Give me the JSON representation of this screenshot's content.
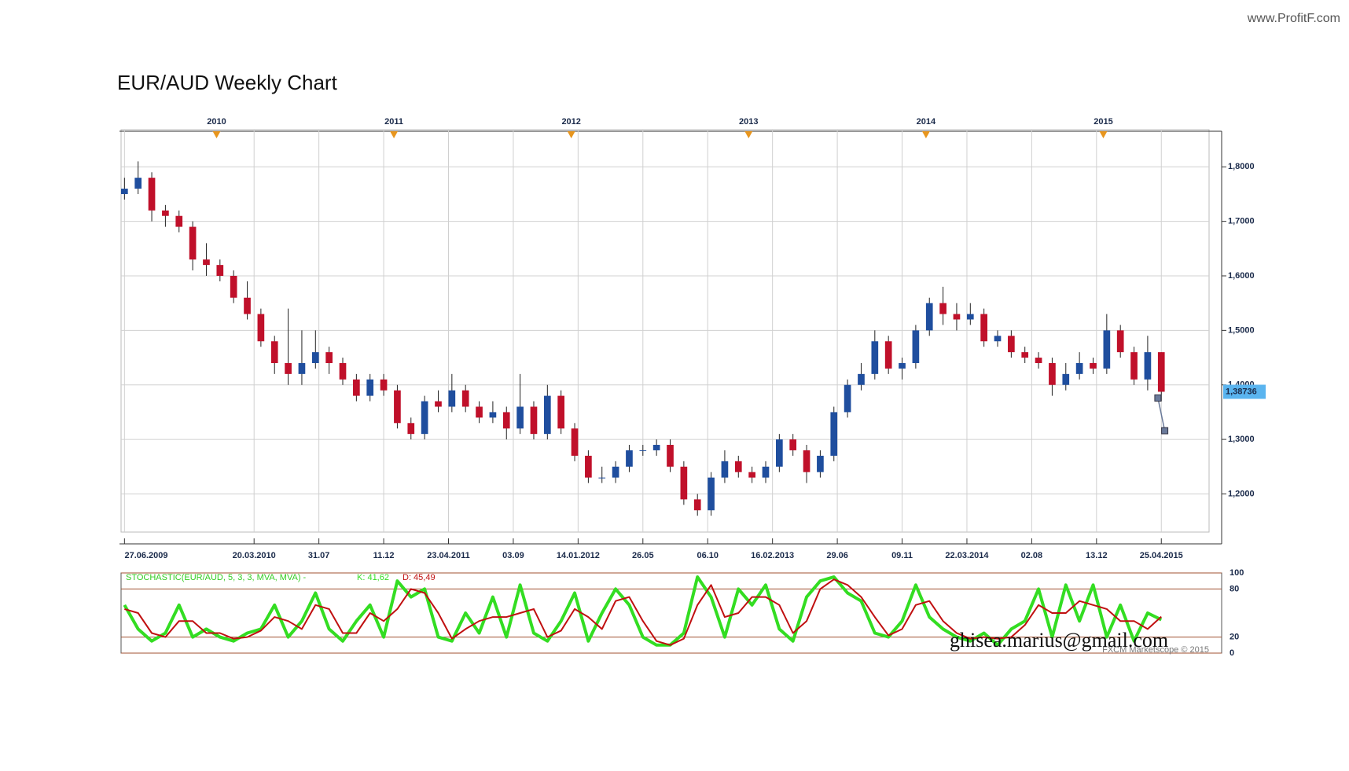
{
  "site": "www.ProfitF.com",
  "email": "ghisea.marius@gmail.com",
  "credit": "FXCM Marketscope © 2015",
  "chart_data": [
    {
      "type": "candlestick",
      "title": "EUR/AUD Weekly Chart",
      "x": [
        0,
        4,
        8,
        12,
        16,
        20,
        24,
        28,
        32,
        36,
        40,
        44,
        48,
        52,
        56,
        60,
        64,
        68,
        72,
        76,
        80,
        84,
        88,
        92,
        96,
        100,
        104,
        108,
        112,
        116,
        120,
        124,
        128,
        132,
        136,
        140,
        144,
        148,
        152,
        156,
        160,
        164,
        168,
        172,
        176,
        180,
        184,
        188,
        192,
        196,
        200,
        204,
        208,
        212,
        216,
        220,
        224,
        228,
        232,
        236,
        240,
        244,
        248,
        252,
        256,
        260,
        264,
        268,
        272,
        276,
        280,
        284,
        288,
        292,
        296,
        300,
        304
      ],
      "open": [
        1.75,
        1.76,
        1.78,
        1.72,
        1.71,
        1.69,
        1.63,
        1.62,
        1.6,
        1.56,
        1.53,
        1.48,
        1.44,
        1.42,
        1.44,
        1.46,
        1.44,
        1.41,
        1.38,
        1.41,
        1.39,
        1.33,
        1.31,
        1.37,
        1.36,
        1.39,
        1.36,
        1.34,
        1.35,
        1.32,
        1.36,
        1.31,
        1.38,
        1.32,
        1.27,
        1.23,
        1.23,
        1.25,
        1.28,
        1.28,
        1.29,
        1.25,
        1.19,
        1.17,
        1.23,
        1.26,
        1.24,
        1.23,
        1.25,
        1.3,
        1.28,
        1.24,
        1.27,
        1.35,
        1.4,
        1.42,
        1.48,
        1.43,
        1.44,
        1.5,
        1.55,
        1.53,
        1.52,
        1.53,
        1.48,
        1.49,
        1.46,
        1.45,
        1.44,
        1.4,
        1.42,
        1.44,
        1.43,
        1.5,
        1.46,
        1.41,
        1.46
      ],
      "high": [
        1.78,
        1.81,
        1.79,
        1.73,
        1.72,
        1.7,
        1.66,
        1.63,
        1.61,
        1.59,
        1.54,
        1.49,
        1.54,
        1.5,
        1.5,
        1.47,
        1.45,
        1.42,
        1.42,
        1.42,
        1.4,
        1.34,
        1.38,
        1.39,
        1.42,
        1.4,
        1.37,
        1.37,
        1.36,
        1.42,
        1.37,
        1.4,
        1.39,
        1.33,
        1.28,
        1.25,
        1.26,
        1.29,
        1.29,
        1.3,
        1.3,
        1.26,
        1.2,
        1.24,
        1.28,
        1.27,
        1.25,
        1.26,
        1.31,
        1.31,
        1.29,
        1.28,
        1.36,
        1.41,
        1.44,
        1.5,
        1.49,
        1.45,
        1.51,
        1.56,
        1.58,
        1.55,
        1.55,
        1.54,
        1.5,
        1.5,
        1.47,
        1.46,
        1.45,
        1.44,
        1.46,
        1.45,
        1.53,
        1.51,
        1.47,
        1.49,
        1.46
      ],
      "low": [
        1.74,
        1.75,
        1.7,
        1.69,
        1.68,
        1.61,
        1.6,
        1.59,
        1.55,
        1.52,
        1.47,
        1.42,
        1.4,
        1.4,
        1.43,
        1.42,
        1.4,
        1.37,
        1.37,
        1.38,
        1.32,
        1.3,
        1.3,
        1.35,
        1.35,
        1.35,
        1.33,
        1.33,
        1.3,
        1.31,
        1.3,
        1.3,
        1.31,
        1.26,
        1.22,
        1.22,
        1.22,
        1.24,
        1.27,
        1.27,
        1.24,
        1.18,
        1.16,
        1.16,
        1.22,
        1.23,
        1.22,
        1.22,
        1.24,
        1.27,
        1.22,
        1.23,
        1.26,
        1.34,
        1.39,
        1.41,
        1.42,
        1.41,
        1.43,
        1.49,
        1.51,
        1.5,
        1.51,
        1.47,
        1.47,
        1.45,
        1.44,
        1.43,
        1.38,
        1.39,
        1.41,
        1.42,
        1.42,
        1.45,
        1.4,
        1.39,
        1.37
      ],
      "close": [
        1.76,
        1.78,
        1.72,
        1.71,
        1.69,
        1.63,
        1.62,
        1.6,
        1.56,
        1.53,
        1.48,
        1.44,
        1.42,
        1.44,
        1.46,
        1.44,
        1.41,
        1.38,
        1.41,
        1.39,
        1.33,
        1.31,
        1.37,
        1.36,
        1.39,
        1.36,
        1.34,
        1.35,
        1.32,
        1.36,
        1.31,
        1.38,
        1.32,
        1.27,
        1.23,
        1.23,
        1.25,
        1.28,
        1.28,
        1.29,
        1.25,
        1.19,
        1.17,
        1.23,
        1.26,
        1.24,
        1.23,
        1.25,
        1.3,
        1.28,
        1.24,
        1.27,
        1.35,
        1.4,
        1.42,
        1.48,
        1.43,
        1.44,
        1.5,
        1.55,
        1.53,
        1.52,
        1.53,
        1.48,
        1.49,
        1.46,
        1.45,
        1.44,
        1.4,
        1.42,
        1.44,
        1.43,
        1.5,
        1.46,
        1.41,
        1.46,
        1.3874
      ],
      "up_color": "#1f4e9e",
      "down_color": "#c0102a",
      "xlim": [
        -1,
        318
      ],
      "xticks": [
        {
          "value": 0,
          "label": "27.06.2009"
        },
        {
          "value": 38,
          "label": "20.03.2010"
        },
        {
          "value": 57,
          "label": "31.07"
        },
        {
          "value": 76,
          "label": "11.12"
        },
        {
          "value": 95,
          "label": "23.04.2011"
        },
        {
          "value": 114,
          "label": "03.09"
        },
        {
          "value": 133,
          "label": "14.01.2012"
        },
        {
          "value": 152,
          "label": "26.05"
        },
        {
          "value": 171,
          "label": "06.10"
        },
        {
          "value": 190,
          "label": "16.02.2013"
        },
        {
          "value": 209,
          "label": "29.06"
        },
        {
          "value": 228,
          "label": "09.11"
        },
        {
          "value": 247,
          "label": "22.03.2014"
        },
        {
          "value": 266,
          "label": "02.08"
        },
        {
          "value": 285,
          "label": "13.12"
        },
        {
          "value": 304,
          "label": "25.04.2015"
        }
      ],
      "year_ticks": [
        {
          "value": 27,
          "label": "2010"
        },
        {
          "value": 79,
          "label": "2011"
        },
        {
          "value": 131,
          "label": "2012"
        },
        {
          "value": 183,
          "label": "2013"
        },
        {
          "value": 235,
          "label": "2014"
        },
        {
          "value": 287,
          "label": "2015"
        }
      ],
      "ylim": [
        1.13,
        1.848
      ],
      "yticks": [
        {
          "value": 1.2,
          "label": "1,2000"
        },
        {
          "value": 1.3,
          "label": "1,3000"
        },
        {
          "value": 1.4,
          "label": "1,4000"
        },
        {
          "value": 1.5,
          "label": "1,5000"
        },
        {
          "value": 1.6,
          "label": "1,6000"
        },
        {
          "value": 1.7,
          "label": "1,7000"
        },
        {
          "value": 1.8,
          "label": "1,8000"
        }
      ],
      "grid": true,
      "last_price": {
        "value": 1.38736,
        "label": "1,38736"
      },
      "projection": {
        "x": [
          303,
          305
        ],
        "values": [
          1.376,
          1.316
        ],
        "color": "#6a7a9a"
      }
    },
    {
      "type": "line",
      "title": "STOCHASTIC(EUR/AUD, 5, 3, 3, MVA, MVA) -",
      "x": [
        0,
        4,
        8,
        12,
        16,
        20,
        24,
        28,
        32,
        36,
        40,
        44,
        48,
        52,
        56,
        60,
        64,
        68,
        72,
        76,
        80,
        84,
        88,
        92,
        96,
        100,
        104,
        108,
        112,
        116,
        120,
        124,
        128,
        132,
        136,
        140,
        144,
        148,
        152,
        156,
        160,
        164,
        168,
        172,
        176,
        180,
        184,
        188,
        192,
        196,
        200,
        204,
        208,
        212,
        216,
        220,
        224,
        228,
        232,
        236,
        240,
        244,
        248,
        252,
        256,
        260,
        264,
        268,
        272,
        276,
        280,
        284,
        288,
        292,
        296,
        300,
        304
      ],
      "series": [
        {
          "name": "K: 41,62",
          "color": "#33dd22",
          "values": [
            60,
            30,
            15,
            25,
            60,
            20,
            30,
            20,
            15,
            25,
            30,
            60,
            20,
            40,
            75,
            30,
            15,
            40,
            60,
            20,
            90,
            70,
            80,
            20,
            15,
            50,
            25,
            70,
            20,
            85,
            25,
            15,
            40,
            75,
            15,
            50,
            80,
            60,
            20,
            10,
            10,
            25,
            95,
            70,
            20,
            80,
            60,
            85,
            30,
            15,
            70,
            90,
            95,
            75,
            65,
            25,
            20,
            40,
            85,
            45,
            30,
            20,
            15,
            25,
            10,
            30,
            40,
            80,
            20,
            85,
            40,
            85,
            20,
            60,
            15,
            50,
            41.62
          ]
        },
        {
          "name": "D: 45,49",
          "color": "#c01010",
          "values": [
            55,
            50,
            25,
            20,
            40,
            40,
            25,
            25,
            18,
            20,
            28,
            45,
            40,
            30,
            60,
            55,
            25,
            25,
            50,
            40,
            55,
            80,
            75,
            50,
            18,
            30,
            40,
            45,
            45,
            50,
            55,
            20,
            28,
            55,
            45,
            30,
            65,
            70,
            40,
            15,
            10,
            18,
            60,
            85,
            45,
            50,
            70,
            70,
            60,
            25,
            40,
            80,
            92,
            85,
            70,
            45,
            22,
            30,
            60,
            65,
            40,
            25,
            18,
            20,
            18,
            20,
            35,
            60,
            50,
            50,
            65,
            60,
            55,
            40,
            40,
            30,
            45.49
          ]
        }
      ],
      "xlim": [
        -1,
        318
      ],
      "ylim": [
        0,
        100
      ],
      "yticks": [
        0,
        20,
        80,
        100
      ],
      "grid": true
    }
  ]
}
